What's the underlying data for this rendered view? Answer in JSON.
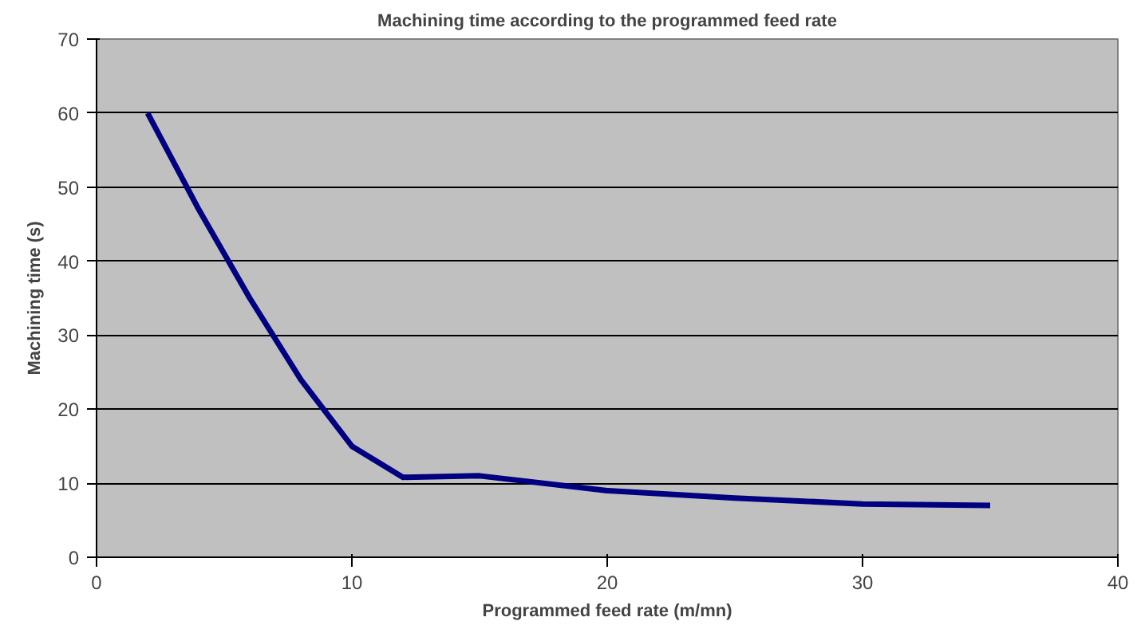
{
  "chart_data": {
    "type": "line",
    "title": "Machining time according to the programmed feed rate",
    "xlabel": "Programmed feed rate (m/mn)",
    "ylabel": "Machining time (s)",
    "x": [
      2,
      4,
      6,
      8,
      10,
      12,
      15,
      20,
      25,
      30,
      35
    ],
    "series": [
      {
        "color": "#000080",
        "values": [
          60,
          47,
          35,
          24,
          15,
          10.8,
          11,
          9,
          8,
          7.2,
          7
        ]
      }
    ],
    "xlim": [
      0,
      40
    ],
    "xticks": [
      0,
      10,
      20,
      30,
      40
    ],
    "ylim": [
      0,
      70
    ],
    "yticks": [
      0,
      10,
      20,
      30,
      40,
      50,
      60,
      70
    ],
    "grid": "y",
    "marker": "none",
    "line_style": "solid"
  }
}
